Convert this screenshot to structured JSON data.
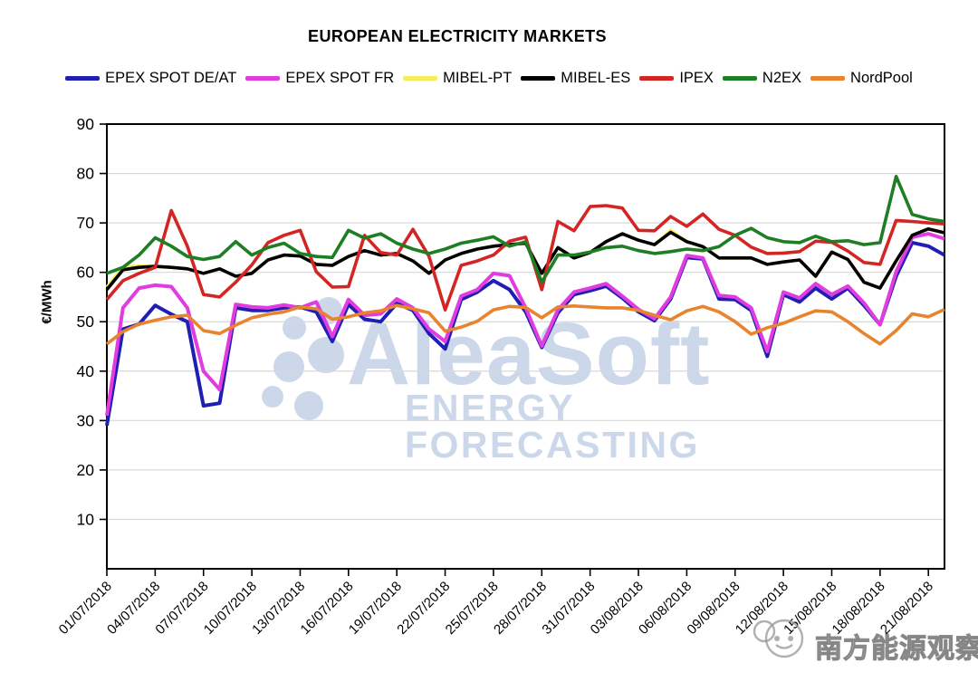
{
  "title": "EUROPEAN ELECTRICITY MARKETS",
  "y_axis": {
    "label": "€/MWh",
    "min": 0,
    "max": 90,
    "tick_step": 10,
    "tick_labels": [
      "90",
      "80",
      "70",
      "60",
      "50",
      "40",
      "30",
      "20",
      "10"
    ]
  },
  "x_axis": {
    "tick_interval_days": 3,
    "tick_labels": [
      "01/07/2018",
      "04/07/2018",
      "07/07/2018",
      "10/07/2018",
      "13/07/2018",
      "16/07/2018",
      "19/07/2018",
      "22/07/2018",
      "25/07/2018",
      "28/07/2018",
      "31/07/2018",
      "03/08/2018",
      "06/08/2018",
      "09/08/2018",
      "12/08/2018",
      "15/08/2018",
      "18/08/2018",
      "21/08/2018"
    ]
  },
  "watermarks": {
    "center_main": "AleaSoft",
    "center_sub": "ENERGY FORECASTING",
    "center_color": "#ccd8ea",
    "corner_text": "南方能源观察"
  },
  "chart_data": {
    "type": "line",
    "title": "EUROPEAN ELECTRICITY MARKETS",
    "xlabel": "",
    "ylabel": "€/MWh",
    "ylim": [
      0,
      90
    ],
    "grid": true,
    "legend_position": "top",
    "x": [
      "01/07/2018",
      "02/07/2018",
      "03/07/2018",
      "04/07/2018",
      "05/07/2018",
      "06/07/2018",
      "07/07/2018",
      "08/07/2018",
      "09/07/2018",
      "10/07/2018",
      "11/07/2018",
      "12/07/2018",
      "13/07/2018",
      "14/07/2018",
      "15/07/2018",
      "16/07/2018",
      "17/07/2018",
      "18/07/2018",
      "19/07/2018",
      "20/07/2018",
      "21/07/2018",
      "22/07/2018",
      "23/07/2018",
      "24/07/2018",
      "25/07/2018",
      "26/07/2018",
      "27/07/2018",
      "28/07/2018",
      "29/07/2018",
      "30/07/2018",
      "31/07/2018",
      "01/08/2018",
      "02/08/2018",
      "03/08/2018",
      "04/08/2018",
      "05/08/2018",
      "06/08/2018",
      "07/08/2018",
      "08/08/2018",
      "09/08/2018",
      "10/08/2018",
      "11/08/2018",
      "12/08/2018",
      "13/08/2018",
      "14/08/2018",
      "15/08/2018",
      "16/08/2018",
      "17/08/2018",
      "18/08/2018",
      "19/08/2018",
      "20/08/2018",
      "21/08/2018",
      "22/08/2018"
    ],
    "series": [
      {
        "name": "EPEX SPOT DE/AT",
        "color": "#1f1fb4",
        "width": 4,
        "values": [
          29,
          48.5,
          49.5,
          53.3,
          51.5,
          50,
          33,
          33.5,
          52.8,
          52.3,
          52.3,
          52.8,
          53,
          52,
          46,
          53.5,
          50.5,
          50,
          53.7,
          52.3,
          47.6,
          44.5,
          54.5,
          56,
          58.3,
          56.5,
          52,
          44.8,
          51.8,
          55.5,
          56.3,
          57.2,
          54.8,
          52,
          50.2,
          54.6,
          63,
          62.7,
          54.6,
          54.5,
          52.3,
          43,
          55.5,
          54,
          56.8,
          54.6,
          56.8,
          53.3,
          49.4,
          59.2,
          66,
          65.3,
          63.5
        ]
      },
      {
        "name": "EPEX SPOT FR",
        "color": "#e03ce0",
        "width": 4,
        "values": [
          31,
          52.8,
          56.8,
          57.4,
          57.1,
          52.8,
          40,
          36.3,
          53.5,
          53,
          52.8,
          53.4,
          52.8,
          54,
          47,
          54.5,
          51.3,
          51.6,
          54.6,
          52.8,
          48.5,
          46,
          55.2,
          56.5,
          59.8,
          59.3,
          52.8,
          45.1,
          52.4,
          56,
          56.8,
          57.7,
          55.2,
          52.5,
          50.6,
          55,
          63.4,
          62.9,
          55.3,
          55,
          52.8,
          44,
          56,
          54.8,
          57.7,
          55.5,
          57.2,
          53.8,
          49.4,
          60.1,
          67.1,
          67.8,
          66.8
        ]
      },
      {
        "name": "MIBEL-PT",
        "color": "#f2ee55",
        "width": 3.6,
        "values": [
          57,
          61,
          61.3,
          61.2,
          61,
          60.7,
          59.8,
          60.7,
          59.2,
          59.8,
          62.5,
          63.5,
          63.3,
          61.6,
          61.4,
          63.2,
          64.4,
          63.5,
          63.8,
          62.3,
          59.8,
          62.5,
          63.8,
          64.7,
          65.3,
          65.6,
          65.9,
          59.8,
          65,
          62.9,
          64,
          66.2,
          67.8,
          66.5,
          65.6,
          68.5,
          66.2,
          65.2,
          62.9,
          62.9,
          62.9,
          61.6,
          62.1,
          62.5,
          59.2,
          64.1,
          62.6,
          58,
          56.8,
          62.3,
          67.5,
          68.8,
          68
        ]
      },
      {
        "name": "MIBEL-ES",
        "color": "#000000",
        "width": 3.6,
        "values": [
          56.5,
          60.5,
          61,
          61.2,
          61,
          60.7,
          59.8,
          60.7,
          59.2,
          59.8,
          62.5,
          63.5,
          63.3,
          61.6,
          61.4,
          63.2,
          64.4,
          63.5,
          63.8,
          62.3,
          59.8,
          62.5,
          63.8,
          64.7,
          65.3,
          65.6,
          65.9,
          59.8,
          65,
          62.9,
          64,
          66.2,
          67.8,
          66.5,
          65.6,
          68.1,
          66.2,
          65.2,
          62.9,
          62.9,
          62.9,
          61.6,
          62.1,
          62.5,
          59.2,
          64.1,
          62.6,
          58,
          56.8,
          62.3,
          67.5,
          68.8,
          68
        ]
      },
      {
        "name": "IPEX",
        "color": "#d42525",
        "width": 3.6,
        "values": [
          54.5,
          58.3,
          59.8,
          61,
          72.5,
          65.3,
          55.5,
          55,
          58,
          61.5,
          66,
          67.5,
          68.5,
          60.1,
          57,
          57.1,
          67.5,
          64,
          63.5,
          68.7,
          63.2,
          52.4,
          61.4,
          62.3,
          63.5,
          66.3,
          67.1,
          56.5,
          70.3,
          68.4,
          73.3,
          73.5,
          73,
          68.5,
          68.4,
          71.3,
          69.3,
          71.8,
          68.7,
          67.5,
          65.1,
          63.8,
          63.9,
          64.2,
          66.3,
          66.1,
          64.3,
          62,
          61.6,
          70.5,
          70.3,
          70,
          69.8
        ]
      },
      {
        "name": "N2EX",
        "color": "#1e7e24",
        "width": 3.6,
        "values": [
          59.8,
          61,
          63.5,
          67,
          65.3,
          63.2,
          62.6,
          63.2,
          66.2,
          63.5,
          65,
          65.9,
          63.8,
          63.2,
          63,
          68.5,
          66.9,
          67.8,
          65.9,
          64.7,
          63.8,
          64.7,
          65.9,
          66.5,
          67.2,
          65.3,
          66.2,
          58,
          63.5,
          63.5,
          64.1,
          65,
          65.3,
          64.4,
          63.8,
          64.2,
          64.7,
          64.4,
          65.2,
          67.5,
          68.9,
          67,
          66.2,
          66,
          67.3,
          66.2,
          66.4,
          65.6,
          66,
          79.4,
          71.7,
          70.8,
          70.3
        ]
      },
      {
        "name": "NordPool",
        "color": "#e8832e",
        "width": 3.6,
        "values": [
          45.5,
          48,
          49.5,
          50.3,
          51,
          51.3,
          48.2,
          47.6,
          49.3,
          50.8,
          51.5,
          52,
          53,
          52.6,
          50.5,
          51,
          51.8,
          52.2,
          53.3,
          52.6,
          51.8,
          48.1,
          48.9,
          50.1,
          52.4,
          53.1,
          52.9,
          50.8,
          53,
          53.2,
          53,
          52.8,
          52.8,
          52.3,
          51.3,
          50.4,
          52.2,
          53.1,
          52,
          50,
          47.5,
          48.8,
          49.7,
          51,
          52.2,
          52,
          50,
          47.6,
          45.5,
          48.2,
          51.6,
          51,
          52.5
        ]
      }
    ]
  }
}
